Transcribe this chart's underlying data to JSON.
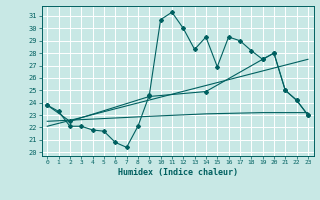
{
  "xlabel": "Humidex (Indice chaleur)",
  "bg_color": "#c8e8e5",
  "line_color": "#006060",
  "grid_color": "#ffffff",
  "xlim": [
    -0.5,
    23.5
  ],
  "ylim": [
    19.7,
    31.8
  ],
  "xticks": [
    0,
    1,
    2,
    3,
    4,
    5,
    6,
    7,
    8,
    9,
    10,
    11,
    12,
    13,
    14,
    15,
    16,
    17,
    18,
    19,
    20,
    21,
    22,
    23
  ],
  "yticks": [
    20,
    21,
    22,
    23,
    24,
    25,
    26,
    27,
    28,
    29,
    30,
    31
  ],
  "series1_x": [
    0,
    1,
    2,
    3,
    4,
    5,
    6,
    7,
    8,
    9,
    10,
    11,
    12,
    13,
    14,
    15,
    16,
    17,
    18,
    19,
    20,
    21,
    22,
    23
  ],
  "series1_y": [
    23.8,
    23.3,
    22.1,
    22.1,
    21.8,
    21.7,
    20.8,
    20.4,
    22.1,
    24.6,
    30.7,
    31.3,
    30.0,
    28.3,
    29.3,
    26.9,
    29.3,
    29.0,
    28.2,
    27.5,
    28.0,
    25.0,
    24.2,
    23.0
  ],
  "series2_x": [
    0,
    2,
    9,
    14,
    19,
    20,
    21,
    22,
    23
  ],
  "series2_y": [
    23.8,
    22.5,
    24.5,
    24.9,
    27.5,
    28.0,
    25.0,
    24.2,
    23.0
  ],
  "series3_x": [
    0,
    23
  ],
  "series3_y": [
    22.1,
    27.5
  ],
  "series4_x": [
    0,
    9,
    14,
    19,
    23
  ],
  "series4_y": [
    22.5,
    22.9,
    23.1,
    23.2,
    23.2
  ]
}
